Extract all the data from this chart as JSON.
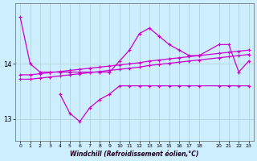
{
  "xlabel": "Windchill (Refroidissement éolien,°C)",
  "background_color": "#cceeff",
  "grid_color": "#aacccc",
  "line_color": "#cc00cc",
  "ylim": [
    12.6,
    15.1
  ],
  "yticks": [
    13,
    14
  ],
  "xlim": [
    -0.5,
    23.5
  ],
  "xticks": [
    0,
    1,
    2,
    3,
    4,
    5,
    6,
    7,
    8,
    9,
    10,
    11,
    12,
    13,
    14,
    15,
    16,
    17,
    18,
    20,
    21,
    22,
    23
  ],
  "line1_x": [
    0,
    1,
    2,
    3,
    4,
    5,
    6,
    7,
    8,
    9,
    10,
    11,
    12,
    13,
    14,
    15,
    16,
    17,
    18,
    20,
    21,
    22,
    23
  ],
  "line1_y": [
    14.85,
    14.0,
    13.85,
    13.85,
    13.85,
    13.85,
    13.85,
    13.85,
    13.85,
    13.85,
    14.05,
    14.25,
    14.55,
    14.65,
    14.5,
    14.35,
    14.25,
    14.15,
    14.15,
    14.35,
    14.35,
    13.85,
    14.05
  ],
  "line2_x": [
    0,
    1,
    2,
    3,
    4,
    5,
    6,
    7,
    8,
    9,
    10,
    11,
    12,
    13,
    14,
    15,
    16,
    17,
    18,
    20,
    21,
    22,
    23
  ],
  "line2_y": [
    13.8,
    13.8,
    13.82,
    13.84,
    13.86,
    13.88,
    13.9,
    13.92,
    13.94,
    13.96,
    13.98,
    14.0,
    14.02,
    14.05,
    14.07,
    14.09,
    14.11,
    14.13,
    14.15,
    14.19,
    14.21,
    14.23,
    14.25
  ],
  "line3_x": [
    0,
    1,
    2,
    3,
    4,
    5,
    6,
    7,
    8,
    9,
    10,
    11,
    12,
    13,
    14,
    15,
    16,
    17,
    18,
    20,
    21,
    22,
    23
  ],
  "line3_y": [
    13.72,
    13.72,
    13.74,
    13.76,
    13.78,
    13.8,
    13.82,
    13.84,
    13.86,
    13.88,
    13.9,
    13.92,
    13.94,
    13.97,
    13.99,
    14.01,
    14.03,
    14.05,
    14.07,
    14.11,
    14.13,
    14.15,
    14.17
  ],
  "line4_x": [
    4,
    5,
    6,
    7,
    8,
    9,
    10,
    11,
    12,
    13,
    14,
    15,
    16,
    17,
    18,
    20,
    21,
    22,
    23
  ],
  "line4_y": [
    13.45,
    13.1,
    12.95,
    13.2,
    13.35,
    13.45,
    13.6,
    13.6,
    13.6,
    13.6,
    13.6,
    13.6,
    13.6,
    13.6,
    13.6,
    13.6,
    13.6,
    13.6,
    13.6
  ]
}
